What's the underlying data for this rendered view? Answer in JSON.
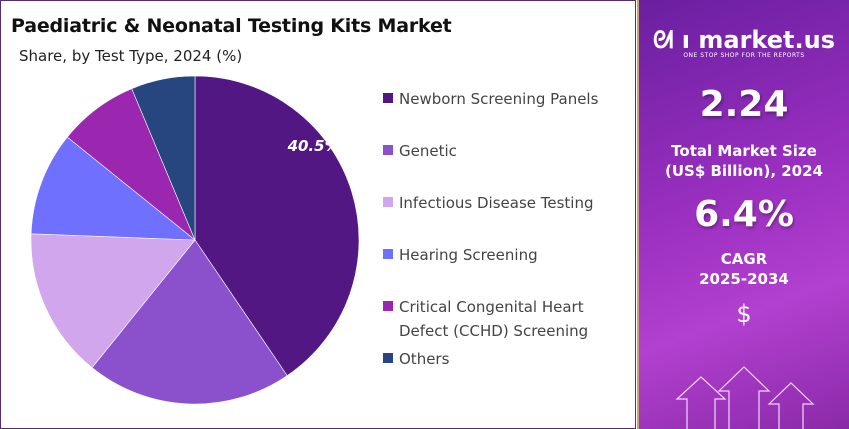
{
  "chart_data": {
    "type": "pie",
    "title": "Paediatric & Neonatal Testing Kits Market",
    "subtitle": "Share, by Test Type, 2024 (%)",
    "start_angle": "12 o'clock, clockwise",
    "slices": [
      {
        "label": "Newborn Screening Panels",
        "value": 40.5,
        "color": "#521782",
        "data_label": "40.5%"
      },
      {
        "label": "Genetic",
        "value": 20.3,
        "color": "#8b50cc"
      },
      {
        "label": "Infectious Disease Testing",
        "value": 14.8,
        "color": "#d2a6ec"
      },
      {
        "label": "Hearing Screening",
        "value": 10.2,
        "color": "#7070ff"
      },
      {
        "label": "Critical Congenital Heart Defect (CCHD) Screening",
        "value": 7.9,
        "color": "#9b27b0"
      },
      {
        "label": "Others",
        "value": 6.3,
        "color": "#27467f"
      }
    ],
    "legend_placement": "right"
  },
  "sidebar": {
    "brand": "market.us",
    "tagline": "ONE STOP SHOP FOR THE REPORTS",
    "market_size": "2.24",
    "market_size_label_1": "Total Market Size",
    "market_size_label_2": "(US$ Billion), 2024",
    "cagr": "6.4%",
    "cagr_label_1": "CAGR",
    "cagr_label_2": "2025-2034",
    "currency_symbol": "$"
  }
}
